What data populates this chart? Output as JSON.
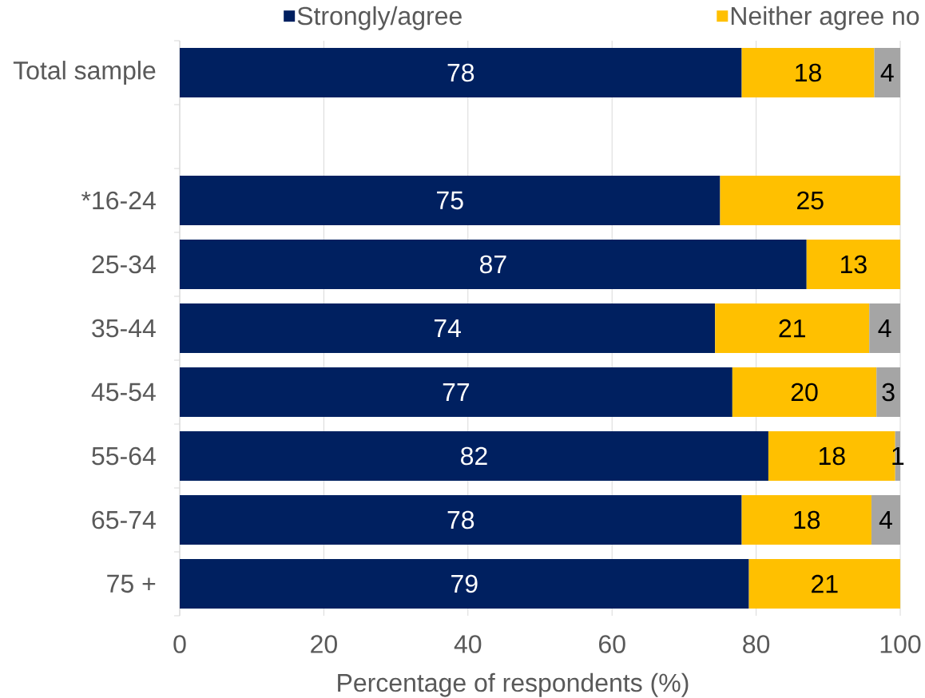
{
  "chart_data": {
    "type": "bar",
    "orientation": "horizontal",
    "stacked": true,
    "categories": [
      "Total sample",
      null,
      "*16-24",
      "25-34",
      "35-44",
      "45-54",
      "55-64",
      "65-74",
      "75 +"
    ],
    "series": [
      {
        "name": "Strongly/agree",
        "color": "#002060",
        "values": [
          78.0,
          null,
          75,
          87,
          74.3,
          76.7,
          81.7,
          78,
          79
        ],
        "value_labels": [
          "78",
          null,
          "75",
          "87",
          "74",
          "77",
          "82",
          "78",
          "79"
        ]
      },
      {
        "name": "Neither agree no",
        "color": "#ffc000",
        "values": [
          18.4,
          null,
          25,
          13,
          21.4,
          20.0,
          17.6,
          18,
          21
        ],
        "value_labels": [
          "18",
          null,
          "25",
          "13",
          "21",
          "20",
          "18",
          "18",
          "21"
        ]
      },
      {
        "color": "#a5a5a5",
        "values": [
          3.6,
          null,
          null,
          null,
          4.3,
          3.3,
          0.7,
          4,
          null
        ],
        "value_labels": [
          "4",
          null,
          null,
          null,
          "4",
          "3",
          "1",
          "4",
          null
        ]
      }
    ],
    "xlabel": "Percentage of respondents (%)",
    "xlim": [
      0,
      100
    ],
    "xticks": [
      0,
      20,
      40,
      60,
      80,
      100
    ],
    "grid": "x",
    "legend": "top"
  }
}
